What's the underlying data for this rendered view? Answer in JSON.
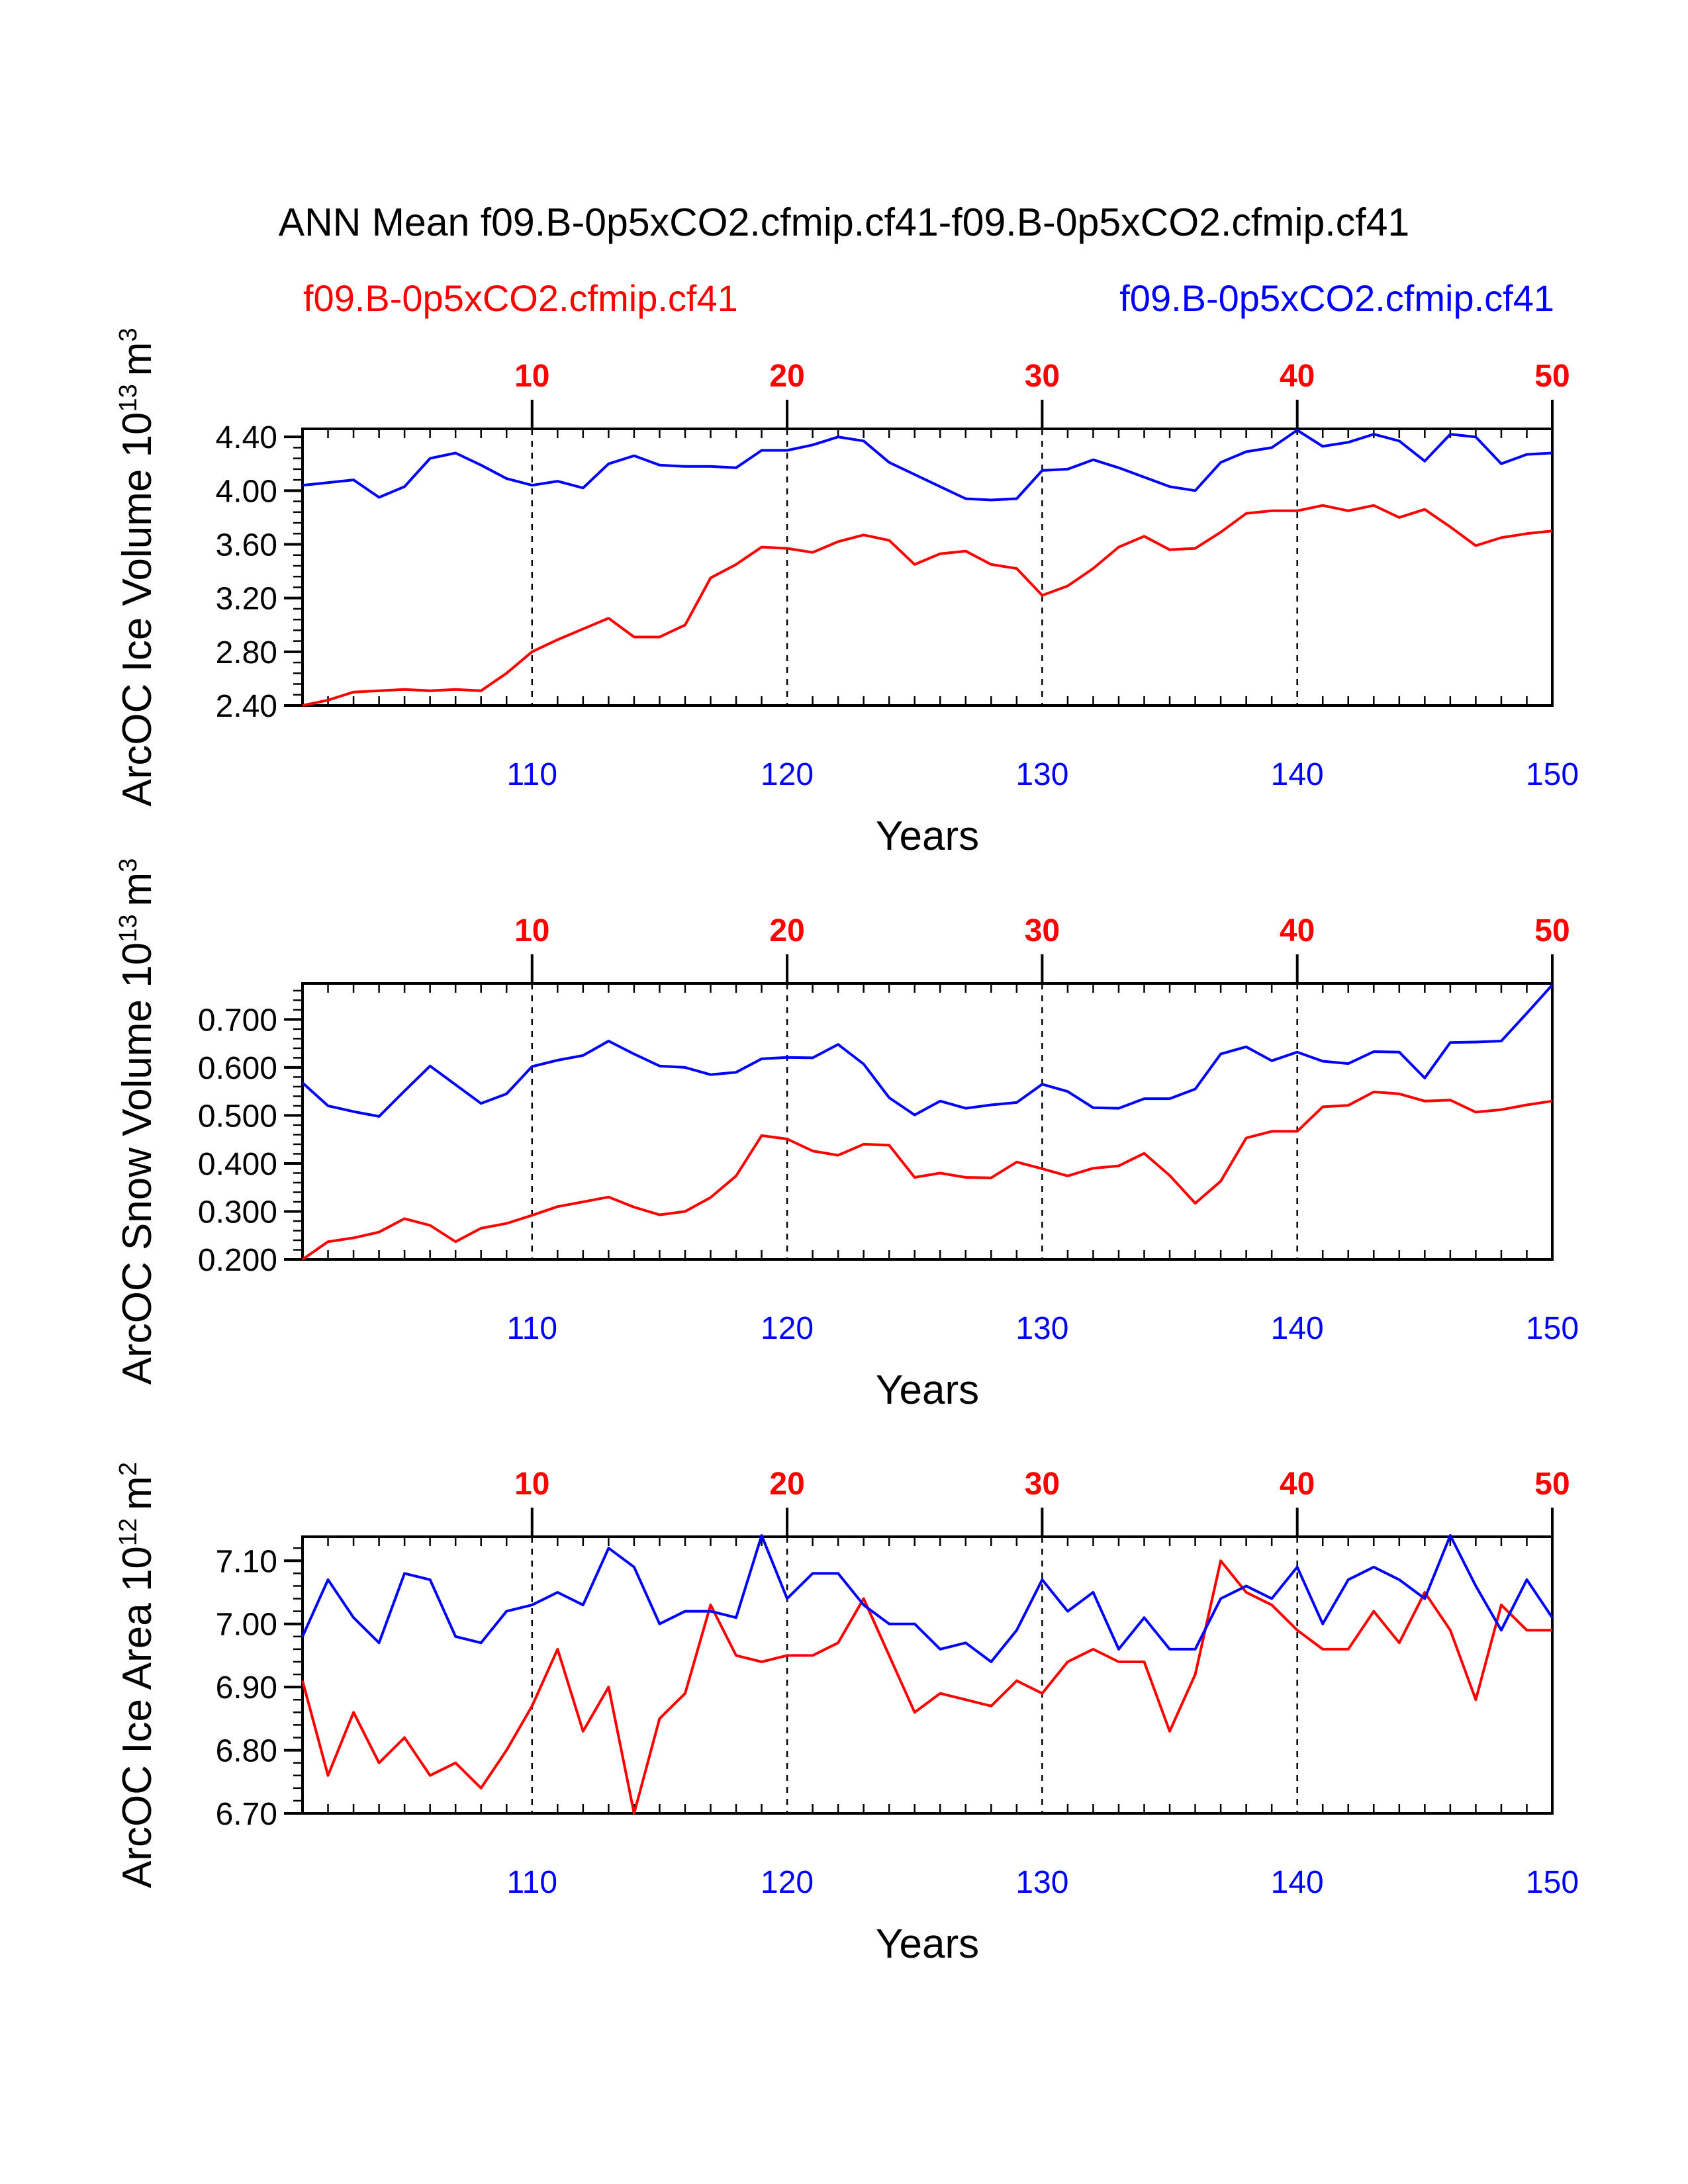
{
  "title": "ANN Mean f09.B-0p5xCO2.cfmip.cf41-f09.B-0p5xCO2.cfmip.cf41",
  "legend": {
    "left": {
      "label": "f09.B-0p5xCO2.cfmip.cf41",
      "color": "#ff0000"
    },
    "right": {
      "label": "f09.B-0p5xCO2.cfmip.cf41",
      "color": "#0000ff"
    }
  },
  "colors": {
    "red": "#ff0000",
    "blue": "#0000ff",
    "axis": "#000000"
  },
  "chart_data": [
    {
      "type": "line",
      "ylabel": "ArcOC Ice Volume 10",
      "yunit_exp": "13",
      "yunit": "m",
      "yunit_pow": "3",
      "xlabel": "Years",
      "xlim": [
        101,
        150
      ],
      "ylim": [
        2.4,
        4.46
      ],
      "yticks": [
        "2.40",
        "2.80",
        "3.20",
        "3.60",
        "4.00",
        "4.40"
      ],
      "ytick_values": [
        2.4,
        2.8,
        3.2,
        3.6,
        4.0,
        4.4
      ],
      "yminor_step": 0.08,
      "xticks_bottom": [
        "110",
        "120",
        "130",
        "140",
        "150"
      ],
      "xticks_top": [
        "10",
        "20",
        "30",
        "40",
        "50"
      ],
      "x": [
        101,
        102,
        103,
        104,
        105,
        106,
        107,
        108,
        109,
        110,
        111,
        112,
        113,
        114,
        115,
        116,
        117,
        118,
        119,
        120,
        121,
        122,
        123,
        124,
        125,
        126,
        127,
        128,
        129,
        130,
        131,
        132,
        133,
        134,
        135,
        136,
        137,
        138,
        139,
        140,
        141,
        142,
        143,
        144,
        145,
        146,
        147,
        148,
        149,
        150
      ],
      "series": [
        {
          "name": "f09.B-0p5xCO2.cfmip.cf41",
          "color": "#ff0000",
          "values": [
            2.4,
            2.44,
            2.5,
            2.51,
            2.52,
            2.51,
            2.52,
            2.51,
            2.64,
            2.8,
            2.89,
            2.97,
            3.05,
            2.91,
            2.91,
            3.0,
            3.35,
            3.45,
            3.58,
            3.57,
            3.54,
            3.62,
            3.67,
            3.63,
            3.45,
            3.53,
            3.55,
            3.45,
            3.42,
            3.22,
            3.29,
            3.42,
            3.58,
            3.66,
            3.56,
            3.57,
            3.69,
            3.83,
            3.85,
            3.85,
            3.89,
            3.85,
            3.89,
            3.8,
            3.86,
            3.73,
            3.59,
            3.65,
            3.68,
            3.7
          ]
        },
        {
          "name": "f09.B-0p5xCO2.cfmip.cf41",
          "color": "#0000ff",
          "values": [
            4.04,
            4.06,
            4.08,
            3.95,
            4.03,
            4.24,
            4.28,
            4.19,
            4.09,
            4.04,
            4.07,
            4.02,
            4.2,
            4.26,
            4.19,
            4.18,
            4.18,
            4.17,
            4.3,
            4.3,
            4.34,
            4.4,
            4.37,
            4.21,
            4.12,
            4.03,
            3.94,
            3.93,
            3.94,
            4.15,
            4.16,
            4.23,
            4.17,
            4.1,
            4.03,
            4.0,
            4.21,
            4.29,
            4.32,
            4.45,
            4.33,
            4.36,
            4.42,
            4.37,
            4.22,
            4.42,
            4.4,
            4.2,
            4.27,
            4.28
          ]
        }
      ]
    },
    {
      "type": "line",
      "ylabel": "ArcOC Snow Volume 10",
      "yunit_exp": "13",
      "yunit": "m",
      "yunit_pow": "3",
      "xlabel": "Years",
      "xlim": [
        101,
        150
      ],
      "ylim": [
        0.2,
        0.775
      ],
      "yticks": [
        "0.200",
        "0.300",
        "0.400",
        "0.500",
        "0.600",
        "0.700"
      ],
      "ytick_values": [
        0.2,
        0.3,
        0.4,
        0.5,
        0.6,
        0.7
      ],
      "yminor_step": 0.02,
      "xticks_bottom": [
        "110",
        "120",
        "130",
        "140",
        "150"
      ],
      "xticks_top": [
        "10",
        "20",
        "30",
        "40",
        "50"
      ],
      "x": [
        101,
        102,
        103,
        104,
        105,
        106,
        107,
        108,
        109,
        110,
        111,
        112,
        113,
        114,
        115,
        116,
        117,
        118,
        119,
        120,
        121,
        122,
        123,
        124,
        125,
        126,
        127,
        128,
        129,
        130,
        131,
        132,
        133,
        134,
        135,
        136,
        137,
        138,
        139,
        140,
        141,
        142,
        143,
        144,
        145,
        146,
        147,
        148,
        149,
        150
      ],
      "series": [
        {
          "name": "f09.B-0p5xCO2.cfmip.cf41",
          "color": "#ff0000",
          "values": [
            0.2,
            0.237,
            0.245,
            0.257,
            0.285,
            0.271,
            0.237,
            0.265,
            0.275,
            0.292,
            0.31,
            0.32,
            0.33,
            0.309,
            0.293,
            0.3,
            0.329,
            0.374,
            0.458,
            0.451,
            0.426,
            0.417,
            0.44,
            0.438,
            0.371,
            0.38,
            0.371,
            0.37,
            0.403,
            0.389,
            0.374,
            0.39,
            0.395,
            0.421,
            0.375,
            0.317,
            0.363,
            0.453,
            0.467,
            0.467,
            0.518,
            0.521,
            0.549,
            0.545,
            0.53,
            0.532,
            0.507,
            0.512,
            0.522,
            0.53
          ]
        },
        {
          "name": "f09.B-0p5xCO2.cfmip.cf41",
          "color": "#0000ff",
          "values": [
            0.568,
            0.52,
            0.508,
            0.498,
            0.551,
            0.603,
            0.564,
            0.525,
            0.545,
            0.602,
            0.615,
            0.625,
            0.655,
            0.628,
            0.603,
            0.6,
            0.585,
            0.59,
            0.618,
            0.621,
            0.62,
            0.648,
            0.607,
            0.537,
            0.501,
            0.53,
            0.515,
            0.522,
            0.527,
            0.565,
            0.55,
            0.516,
            0.515,
            0.535,
            0.535,
            0.555,
            0.628,
            0.643,
            0.614,
            0.632,
            0.613,
            0.608,
            0.633,
            0.632,
            0.578,
            0.652,
            0.653,
            0.655,
            0.713,
            0.772
          ]
        }
      ]
    },
    {
      "type": "line",
      "ylabel": "ArcOC Ice Area 10",
      "yunit_exp": "12",
      "yunit": "m",
      "yunit_pow": "2",
      "xlabel": "Years",
      "xlim": [
        101,
        150
      ],
      "ylim": [
        6.7,
        7.138
      ],
      "yticks": [
        "6.70",
        "6.80",
        "6.90",
        "7.00",
        "7.10"
      ],
      "ytick_values": [
        6.7,
        6.8,
        6.9,
        7.0,
        7.1
      ],
      "yminor_step": 0.02,
      "xticks_bottom": [
        "110",
        "120",
        "130",
        "140",
        "150"
      ],
      "xticks_top": [
        "10",
        "20",
        "30",
        "40",
        "50"
      ],
      "x": [
        101,
        102,
        103,
        104,
        105,
        106,
        107,
        108,
        109,
        110,
        111,
        112,
        113,
        114,
        115,
        116,
        117,
        118,
        119,
        120,
        121,
        122,
        123,
        124,
        125,
        126,
        127,
        128,
        129,
        130,
        131,
        132,
        133,
        134,
        135,
        136,
        137,
        138,
        139,
        140,
        141,
        142,
        143,
        144,
        145,
        146,
        147,
        148,
        149,
        150
      ],
      "series": [
        {
          "name": "f09.B-0p5xCO2.cfmip.cf41",
          "color": "#ff0000",
          "values": [
            6.91,
            6.76,
            6.86,
            6.78,
            6.82,
            6.76,
            6.78,
            6.74,
            6.8,
            6.87,
            6.96,
            6.83,
            6.9,
            6.7,
            6.85,
            6.89,
            7.03,
            6.95,
            6.94,
            6.95,
            6.95,
            6.97,
            7.04,
            6.95,
            6.86,
            6.89,
            6.88,
            6.87,
            6.91,
            6.89,
            6.94,
            6.96,
            6.94,
            6.94,
            6.83,
            6.92,
            7.1,
            7.05,
            7.03,
            6.99,
            6.96,
            6.96,
            7.02,
            6.97,
            7.05,
            6.99,
            6.88,
            7.03,
            6.99,
            6.99
          ]
        },
        {
          "name": "f09.B-0p5xCO2.cfmip.cf41",
          "color": "#0000ff",
          "values": [
            6.98,
            7.07,
            7.01,
            6.97,
            7.08,
            7.07,
            6.98,
            6.97,
            7.02,
            7.03,
            7.05,
            7.03,
            7.12,
            7.09,
            7.0,
            7.02,
            7.02,
            7.01,
            7.14,
            7.04,
            7.08,
            7.08,
            7.03,
            7.0,
            7.0,
            6.96,
            6.97,
            6.94,
            6.99,
            7.07,
            7.02,
            7.05,
            6.96,
            7.01,
            6.96,
            6.96,
            7.04,
            7.06,
            7.04,
            7.09,
            7.0,
            7.07,
            7.09,
            7.07,
            7.04,
            7.14,
            7.06,
            6.99,
            7.07,
            7.01
          ]
        }
      ]
    }
  ]
}
